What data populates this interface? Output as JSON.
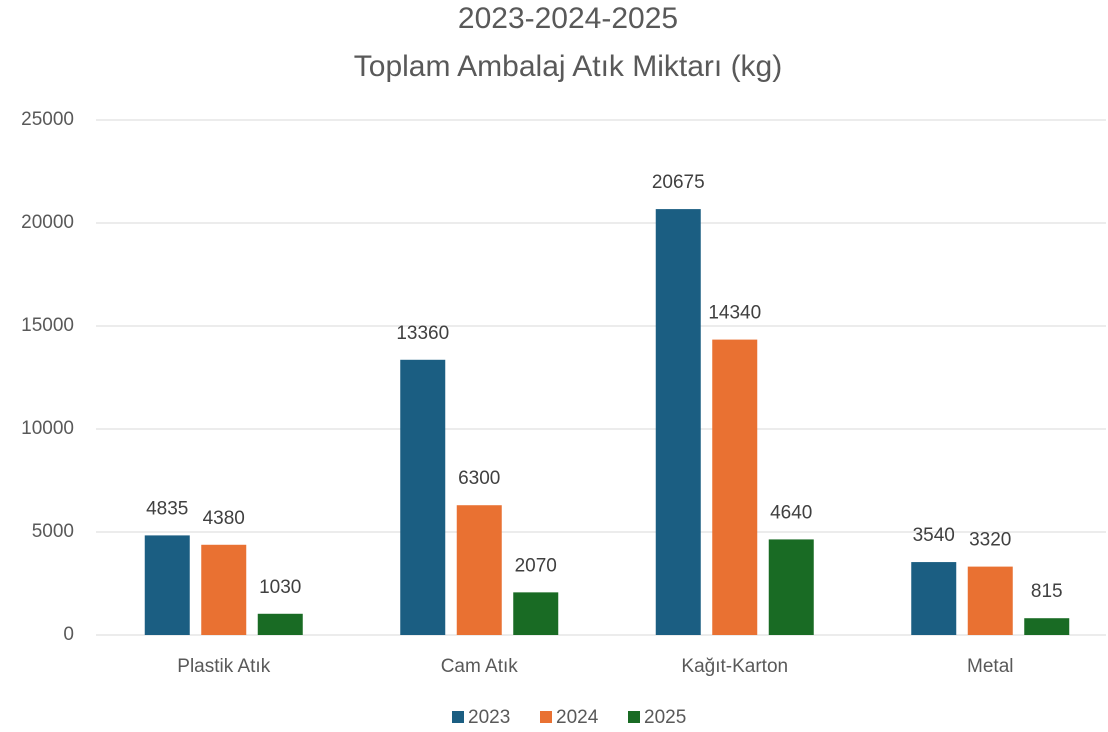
{
  "chart_data": {
    "type": "bar",
    "title": "2023-2024-2025",
    "subtitle": "Toplam Ambalaj Atık Miktarı (kg)",
    "categories": [
      "Plastik Atık",
      "Cam Atık",
      "Kağıt-Karton",
      "Metal"
    ],
    "series": [
      {
        "name": "2023",
        "color": "#1b5e82",
        "values": [
          4835,
          13360,
          20675,
          3540
        ]
      },
      {
        "name": "2024",
        "color": "#e97132",
        "values": [
          4380,
          6300,
          14340,
          3320
        ]
      },
      {
        "name": "2025",
        "color": "#196b24",
        "values": [
          1030,
          2070,
          4640,
          815
        ]
      }
    ],
    "ylim": [
      0,
      25000
    ],
    "yticks": [
      0,
      5000,
      10000,
      15000,
      20000,
      25000
    ],
    "grid": true,
    "legend": "bottom"
  }
}
